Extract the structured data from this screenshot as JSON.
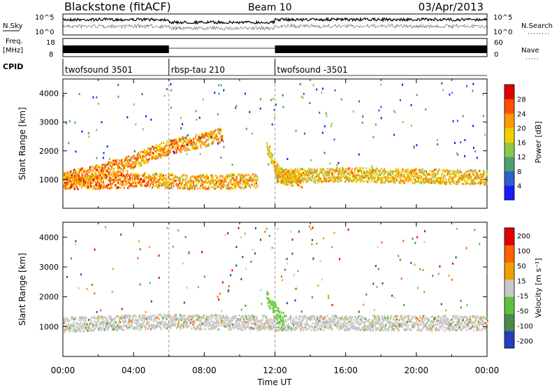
{
  "header": {
    "station": "Blackstone (fitACF)",
    "beam": "Beam 10",
    "date": "03/Apr/2013"
  },
  "summary": {
    "nsky_label": "N.Sky",
    "nsky_ticks": [
      "10^5",
      "10^0"
    ],
    "nsearch_label": "N.Search",
    "nsearch_ticks": [
      "10^5",
      "10^0"
    ],
    "freq_label_1": "Freq.",
    "freq_label_2": "[MHz]",
    "freq_ticks": [
      "18",
      "8"
    ],
    "nave_label": "Nave",
    "nave_ticks": [
      "60",
      "0"
    ],
    "cpid_label": "CPID",
    "cpid_segments": [
      {
        "label": "twofsound 3501",
        "start": 0,
        "end": 6
      },
      {
        "label": "rbsp-tau 210",
        "start": 6,
        "end": 12
      },
      {
        "label": "twofsound -3501",
        "start": 12,
        "end": 24
      }
    ]
  },
  "chart_data": [
    {
      "type": "heatmap",
      "title": "",
      "xlabel": "Time UT",
      "ylabel": "Slant Range [km]",
      "xlim": [
        0,
        24
      ],
      "ylim": [
        0,
        4500
      ],
      "xticks": [
        "00:00",
        "04:00",
        "08:00",
        "12:00",
        "16:00",
        "20:00",
        "00:00"
      ],
      "yticks": [
        "1000",
        "2000",
        "3000",
        "4000"
      ],
      "colorbar": {
        "label": "Power [dB]",
        "ticks": [
          "4",
          "8",
          "12",
          "16",
          "20",
          "24",
          "28"
        ],
        "range": [
          0,
          30
        ],
        "colors": [
          "#1a1aff",
          "#3060c8",
          "#4aa070",
          "#8cc84a",
          "#f0d000",
          "#ff9a00",
          "#ff5000",
          "#e00000"
        ]
      },
      "features": [
        {
          "name": "rising band",
          "t": [
            0,
            2,
            4,
            5,
            6,
            7,
            8,
            9
          ],
          "r": [
            1050,
            1300,
            1650,
            1950,
            2150,
            2300,
            2400,
            2600
          ],
          "strength": 0.85
        },
        {
          "name": "lower band",
          "t": [
            0,
            2,
            4,
            5
          ],
          "r": [
            950,
            950,
            1000,
            1050
          ],
          "strength": 0.9
        },
        {
          "name": "flat band",
          "t": [
            5,
            7,
            9,
            11
          ],
          "r": [
            1000,
            950,
            950,
            1000
          ],
          "strength": 0.8
        },
        {
          "name": "sloping trace",
          "t": [
            11.5,
            11.8,
            12.0,
            12.5,
            13.5
          ],
          "r": [
            2200,
            1800,
            1400,
            1100,
            1000
          ],
          "strength": 0.75
        },
        {
          "name": "afternoon band",
          "t": [
            12,
            16,
            20,
            24
          ],
          "r": [
            1150,
            1200,
            1150,
            1100
          ],
          "strength": 0.75
        }
      ]
    },
    {
      "type": "heatmap",
      "title": "",
      "xlabel": "Time UT",
      "ylabel": "Slant Range [km]",
      "xlim": [
        0,
        24
      ],
      "ylim": [
        0,
        4500
      ],
      "xticks": [
        "00:00",
        "04:00",
        "08:00",
        "12:00",
        "16:00",
        "20:00",
        "00:00"
      ],
      "yticks": [
        "1000",
        "2000",
        "3000",
        "4000"
      ],
      "colorbar": {
        "label": "Velocity [m s⁻¹]",
        "ticks": [
          "200",
          "100",
          "50",
          "15",
          "-15",
          "-50",
          "-100",
          "-200"
        ],
        "range": [
          -250,
          250
        ],
        "colors": [
          "#2040c0",
          "#4a8a4a",
          "#60c040",
          "#c8c8c8",
          "#f0a000",
          "#ff6000",
          "#e00000"
        ]
      },
      "features": [
        {
          "name": "grey ground scatter bands",
          "t": [
            0,
            6,
            12,
            24
          ],
          "r": [
            1100,
            1200,
            1150,
            1150
          ],
          "velocity": 0
        },
        {
          "name": "green trace",
          "t": [
            11.5,
            12.5
          ],
          "r": [
            2000,
            1100
          ],
          "velocity": 40
        }
      ]
    }
  ]
}
